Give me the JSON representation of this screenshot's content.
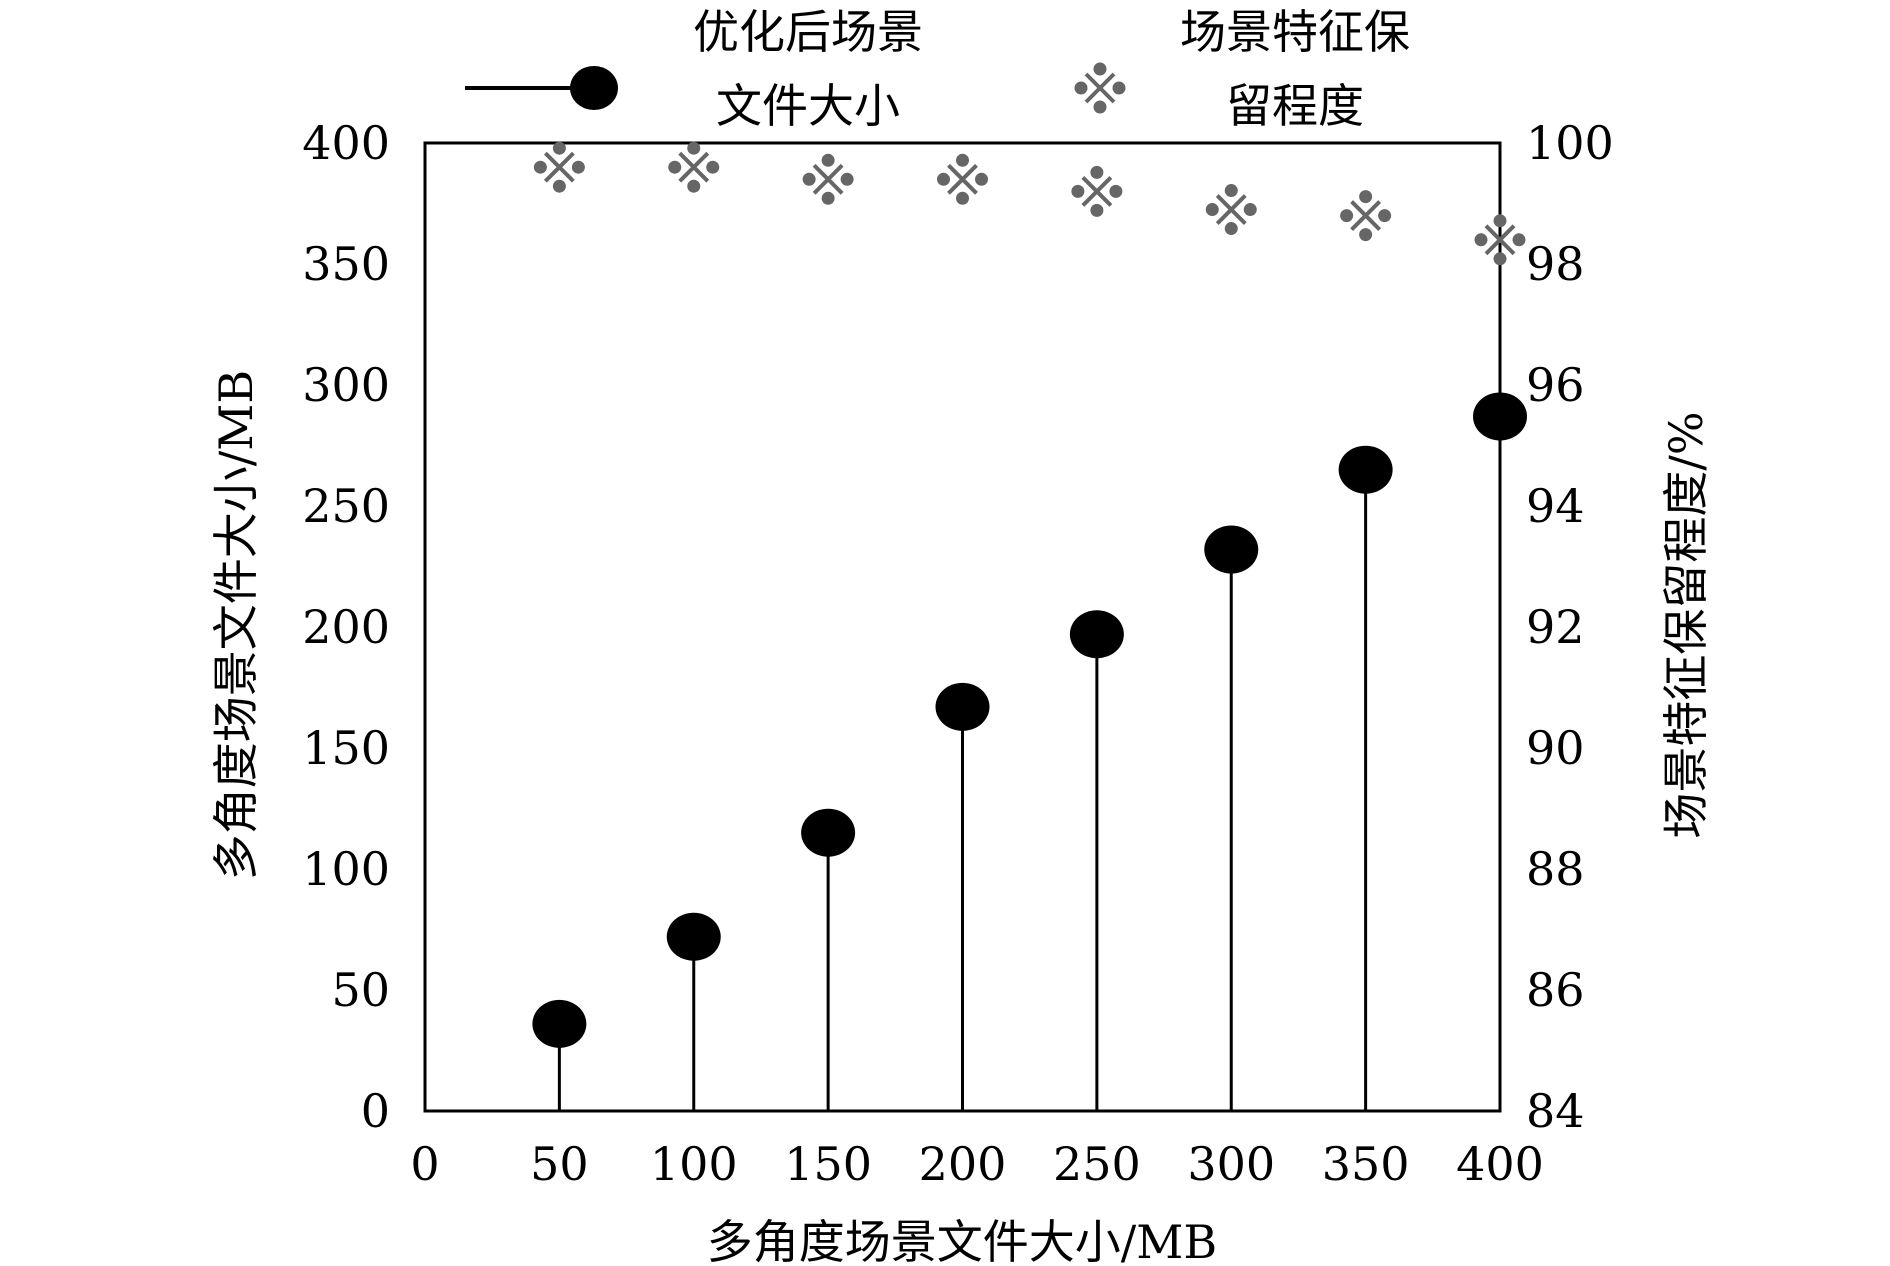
{
  "chart_data": {
    "type": "scatter",
    "xlabel": "多角度场景文件大小/MB",
    "ylabel": "多角度场景文件大小/MB",
    "y2label": "场景特征保留程度/%",
    "x_ticks": [
      0,
      50,
      100,
      150,
      200,
      250,
      300,
      350,
      400
    ],
    "y_ticks": [
      0,
      50,
      100,
      150,
      200,
      250,
      300,
      350,
      400
    ],
    "y2_ticks": [
      84,
      86,
      88,
      90,
      92,
      94,
      96,
      98,
      100
    ],
    "xlim": [
      0,
      400
    ],
    "ylim": [
      0,
      400
    ],
    "y2lim": [
      84,
      100
    ],
    "grid": false,
    "legend_position": "top",
    "series": [
      {
        "name": "优化后场景文件大小",
        "legend_lines": [
          "优化后场景",
          "文件大小"
        ],
        "style": "stem",
        "axis": "left",
        "color": "#000000",
        "x": [
          50,
          100,
          150,
          200,
          250,
          300,
          350,
          400
        ],
        "values": [
          36,
          72,
          115,
          167,
          197,
          232,
          265,
          287
        ]
      },
      {
        "name": "场景特征保留程度",
        "legend_lines": [
          "场景特征保",
          "留程度"
        ],
        "style": "marker",
        "axis": "right",
        "color": "#666666",
        "x": [
          50,
          100,
          150,
          200,
          250,
          300,
          350,
          400
        ],
        "values": [
          99.6,
          99.6,
          99.4,
          99.4,
          99.2,
          98.9,
          98.8,
          98.4
        ]
      }
    ]
  }
}
